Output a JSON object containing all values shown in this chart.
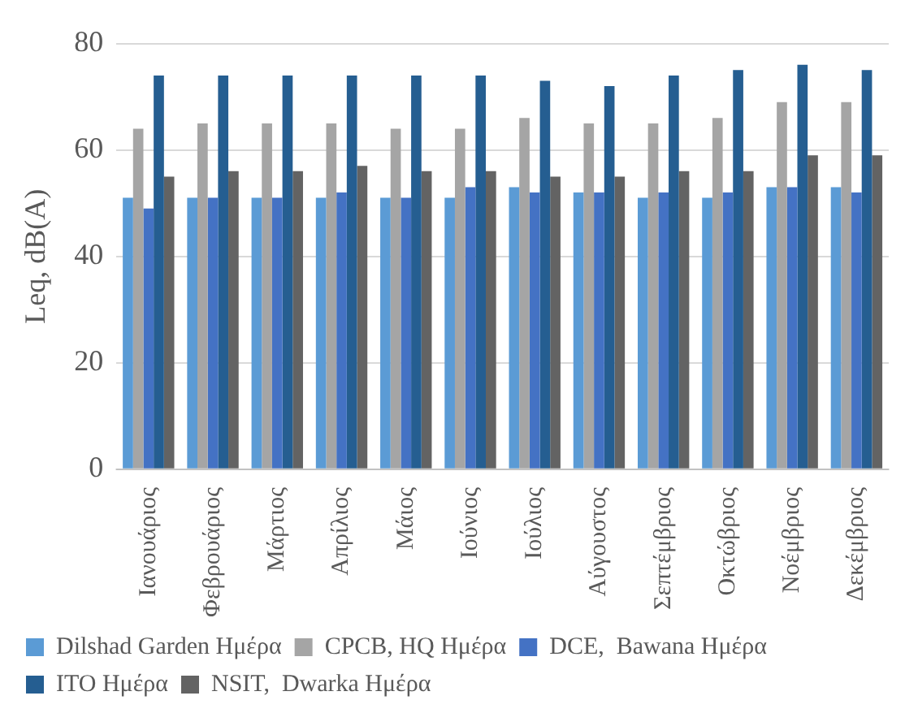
{
  "chart_data": {
    "type": "bar",
    "ylabel": "Leq, dB(A)",
    "categories": [
      "Ιανουάριος",
      "Φεβρουάριος",
      "Μάρτιος",
      "Απρίλιος",
      "Μάιος",
      "Ιούνιος",
      "Ιούλιος",
      "Αύγουστος",
      "Σεπτέμβριος",
      "Οκτώβριος",
      "Νοέμβριος",
      "Δεκέμβριος"
    ],
    "series": [
      {
        "name": "Dilshad Garden Ημέρα",
        "color": "#5b9bd5",
        "values": [
          51,
          51,
          51,
          51,
          51,
          51,
          53,
          52,
          51,
          51,
          53,
          53
        ]
      },
      {
        "name": "CPCB, HQ Ημέρα",
        "color": "#a5a5a5",
        "values": [
          64,
          65,
          65,
          65,
          64,
          64,
          66,
          65,
          65,
          66,
          69,
          69
        ]
      },
      {
        "name": "DCE,  Bawana Ημέρα",
        "color": "#4472c4",
        "values": [
          49,
          51,
          51,
          52,
          51,
          53,
          52,
          52,
          52,
          52,
          53,
          52
        ]
      },
      {
        "name": "ITO Ημέρα",
        "color": "#255e91",
        "values": [
          74,
          74,
          74,
          74,
          74,
          74,
          73,
          72,
          74,
          75,
          76,
          75
        ]
      },
      {
        "name": "NSIT,  Dwarka Ημέρα",
        "color": "#636363",
        "values": [
          55,
          56,
          56,
          57,
          56,
          56,
          55,
          55,
          56,
          56,
          59,
          59
        ]
      }
    ],
    "ylim": [
      0,
      80
    ],
    "yticks": [
      0,
      20,
      40,
      60,
      80
    ],
    "grid": "y",
    "legend": "bottom"
  }
}
